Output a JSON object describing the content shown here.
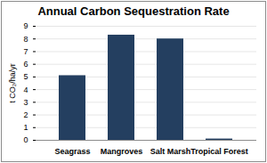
{
  "chart_data": {
    "type": "bar",
    "title": "Annual Carbon Sequestration Rate",
    "ylabel": "t CO₂/ha/yr",
    "categories": [
      "Seagrass",
      "Mangroves",
      "Salt Marsh",
      "Tropical Forest"
    ],
    "values": [
      5.1,
      8.3,
      8.0,
      0.1
    ],
    "color": "#243f60",
    "ylim": [
      0,
      9
    ],
    "yticks": [
      0,
      1,
      2,
      3,
      4,
      5,
      6,
      7,
      8,
      9
    ],
    "grid": true
  }
}
